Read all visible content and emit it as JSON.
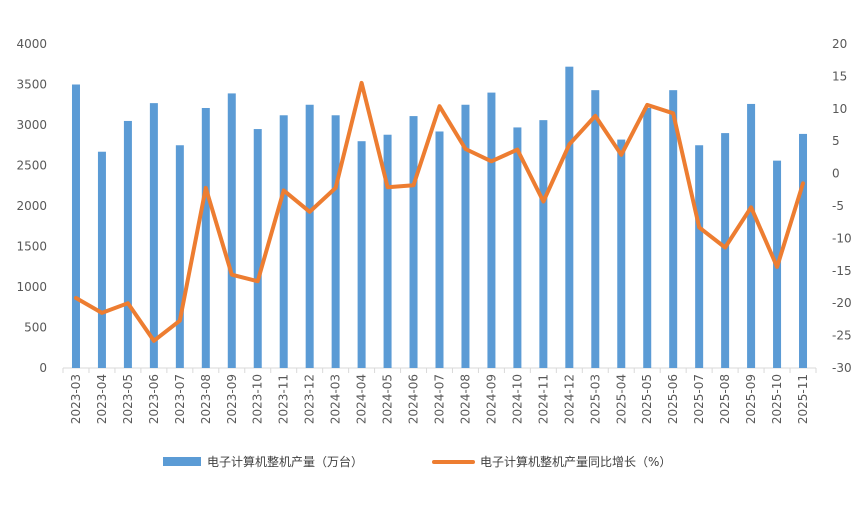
{
  "chart_data": {
    "type": "bar+line",
    "categories": [
      "2023-03",
      "2023-04",
      "2023-05",
      "2023-06",
      "2023-07",
      "2023-08",
      "2023-09",
      "2023-10",
      "2023-11",
      "2023-12",
      "2024-03",
      "2024-04",
      "2024-05",
      "2024-06",
      "2024-07",
      "2024-08",
      "2024-09",
      "2024-10",
      "2024-11",
      "2024-12",
      "2025-03",
      "2025-04",
      "2025-05",
      "2025-06",
      "2025-07",
      "2025-08",
      "2025-09",
      "2025-10",
      "2025-11"
    ],
    "series": [
      {
        "name": "电子计算机整机产量（万台）",
        "type": "bar",
        "axis": "left",
        "color": "#5b9bd5",
        "values": [
          3500,
          2670,
          3050,
          3270,
          2750,
          3210,
          3390,
          2950,
          3120,
          3250,
          3120,
          2800,
          2880,
          3110,
          2920,
          3250,
          3400,
          2970,
          3060,
          3720,
          3430,
          2820,
          3210,
          3430,
          2750,
          2900,
          3260,
          2560,
          2890
        ]
      },
      {
        "name": "电子计算机整机产量同比增长（%）",
        "type": "line",
        "axis": "right",
        "color": "#ed7d31",
        "values": [
          -19.2,
          -21.5,
          -20.0,
          -25.8,
          -22.7,
          -2.2,
          -15.6,
          -16.6,
          -2.6,
          -5.9,
          -2.2,
          14.0,
          -2.1,
          -1.8,
          10.4,
          3.8,
          1.9,
          3.7,
          -4.3,
          4.5,
          8.9,
          2.9,
          10.6,
          9.3,
          -8.3,
          -11.4,
          -5.2,
          -14.4,
          -1.5
        ]
      }
    ],
    "y_left": {
      "min": 0,
      "max": 4000,
      "step": 500,
      "ticks": [
        "0",
        "500",
        "1000",
        "1500",
        "2000",
        "2500",
        "3000",
        "3500",
        "4000"
      ]
    },
    "y_right": {
      "min": -30,
      "max": 20,
      "step": 5,
      "ticks": [
        "-30",
        "-25",
        "-20",
        "-15",
        "-10",
        "-5",
        "0",
        "5",
        "10",
        "15",
        "20"
      ]
    },
    "title": "",
    "xlabel": "",
    "ylabel": "",
    "grid": false,
    "legend_position": "bottom"
  }
}
